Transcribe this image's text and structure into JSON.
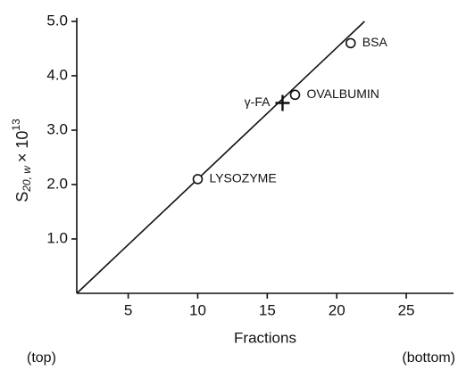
{
  "chart_data": {
    "type": "scatter",
    "xlabel": "Fractions",
    "ylabel": {
      "base": "S",
      "sub": "20, w",
      "times": "× 10",
      "sup": "13"
    },
    "left_note": "(top)",
    "right_note": "(bottom)",
    "xlim": [
      1.3,
      28.4
    ],
    "ylim": [
      0,
      5.0
    ],
    "xticks": [
      5,
      10,
      15,
      20,
      25
    ],
    "yticks": [
      {
        "value": 1,
        "label": "1.0"
      },
      {
        "value": 2,
        "label": "2.0"
      },
      {
        "value": 3,
        "label": "3.0"
      },
      {
        "value": 4,
        "label": "4.0"
      },
      {
        "value": 5,
        "label": "5.0"
      }
    ],
    "color": "#111111",
    "fit_line": {
      "x": [
        1.3,
        22.0
      ],
      "y": [
        0,
        5.0
      ]
    },
    "points": [
      {
        "label": "LYSOZYME",
        "x": 10.0,
        "y": 2.1,
        "marker": "circle"
      },
      {
        "label": "OVALBUMIN",
        "x": 17.0,
        "y": 3.65,
        "marker": "circle"
      },
      {
        "label": "γ-FA",
        "x": 16.1,
        "y": 3.5,
        "marker": "cross"
      },
      {
        "label": "BSA",
        "x": 21.0,
        "y": 4.6,
        "marker": "circle"
      }
    ]
  }
}
